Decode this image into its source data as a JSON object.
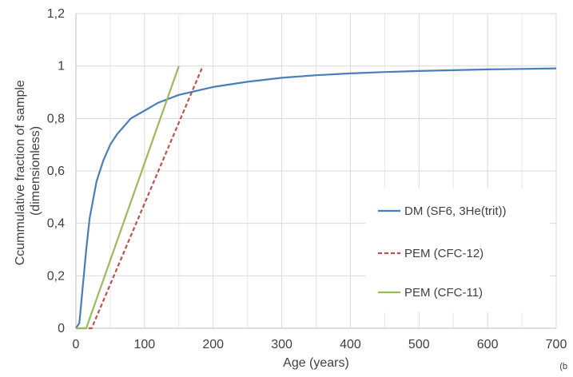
{
  "chart_data": {
    "type": "line",
    "title": "",
    "xlabel": "Age (years)",
    "ylabel_lines": [
      "Ccummulative fraction of sample",
      "(dimensionless)"
    ],
    "xlim": [
      0,
      700
    ],
    "ylim": [
      0,
      1.2
    ],
    "x_ticks": [
      0,
      100,
      200,
      300,
      400,
      500,
      600,
      700
    ],
    "x_tick_labels": [
      "0",
      "100",
      "200",
      "300",
      "400",
      "500",
      "600",
      "700"
    ],
    "x_minor_gridlines": [
      50,
      150,
      250,
      350,
      450,
      550,
      650
    ],
    "y_ticks": [
      0,
      0.2,
      0.4,
      0.6,
      0.8,
      1.0,
      1.2
    ],
    "y_tick_labels": [
      "0",
      "0,2",
      "0,4",
      "0,6",
      "0,8",
      "1",
      "1,2"
    ],
    "grid": true,
    "legend_position": "right-middle",
    "corner_note": "(b",
    "series": [
      {
        "name": "DM (SF6, 3He(trit))",
        "color": "#4a7ebb",
        "dash": "solid",
        "x": [
          0,
          5,
          10,
          15,
          20,
          30,
          40,
          50,
          60,
          80,
          100,
          120,
          150,
          200,
          250,
          300,
          350,
          400,
          450,
          500,
          550,
          600,
          650,
          700
        ],
        "y": [
          0,
          0.02,
          0.16,
          0.3,
          0.42,
          0.56,
          0.64,
          0.7,
          0.74,
          0.8,
          0.83,
          0.86,
          0.89,
          0.92,
          0.94,
          0.955,
          0.965,
          0.972,
          0.977,
          0.981,
          0.984,
          0.987,
          0.989,
          0.991
        ]
      },
      {
        "name": "PEM (CFC-12)",
        "color": "#c0504d",
        "dash": "dashed",
        "x": [
          0,
          23,
          185
        ],
        "y": [
          0,
          0,
          1.0
        ]
      },
      {
        "name": "PEM (CFC-11)",
        "color": "#9bbb59",
        "dash": "solid",
        "x": [
          0,
          15,
          150
        ],
        "y": [
          0,
          0,
          1.0
        ]
      }
    ]
  }
}
